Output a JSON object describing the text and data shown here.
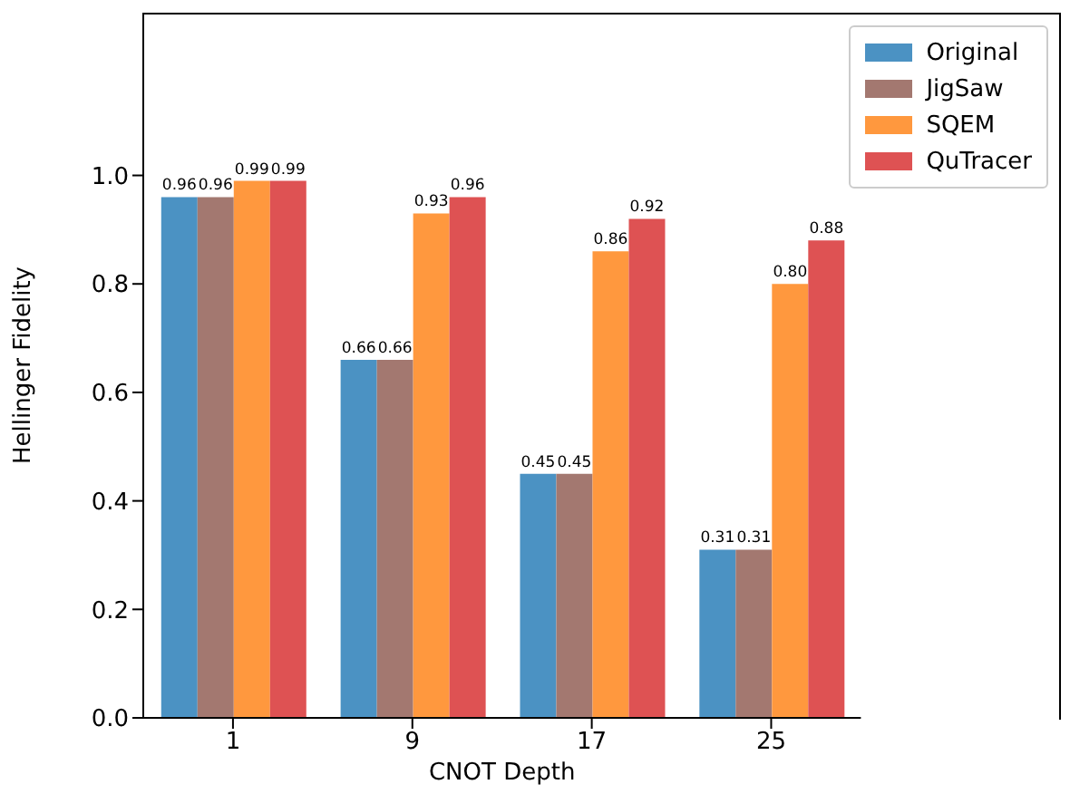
{
  "chart_data": {
    "type": "bar",
    "xlabel": "CNOT Depth",
    "ylabel": "Hellinger Fidelity",
    "categories": [
      "1",
      "9",
      "17",
      "25"
    ],
    "series": [
      {
        "name": "Original",
        "color": "#4b92c3",
        "values": [
          0.96,
          0.66,
          0.45,
          0.31
        ],
        "value_labels": [
          "0.96",
          "0.66",
          "0.45",
          "0.31"
        ]
      },
      {
        "name": "JigSaw",
        "color": "#a37870",
        "values": [
          0.96,
          0.66,
          0.45,
          0.31
        ],
        "value_labels": [
          "0.96",
          "0.66",
          "0.45",
          "0.31"
        ]
      },
      {
        "name": "SQEM",
        "color": "#ff983e",
        "values": [
          0.99,
          0.93,
          0.86,
          0.8
        ],
        "value_labels": [
          "0.99",
          "0.93",
          "0.86",
          "0.80"
        ]
      },
      {
        "name": "QuTracer",
        "color": "#de5253",
        "values": [
          0.99,
          0.96,
          0.92,
          0.88
        ],
        "value_labels": [
          "0.99",
          "0.96",
          "0.92",
          "0.88"
        ]
      }
    ],
    "ylim": [
      0,
      1.3
    ],
    "yticks": [
      {
        "value": 0,
        "label": "0.0"
      },
      0.2,
      0.4,
      0.6,
      0.8,
      {
        "value": 1,
        "label": "1.0"
      }
    ],
    "grid": false,
    "legend": "top right"
  }
}
